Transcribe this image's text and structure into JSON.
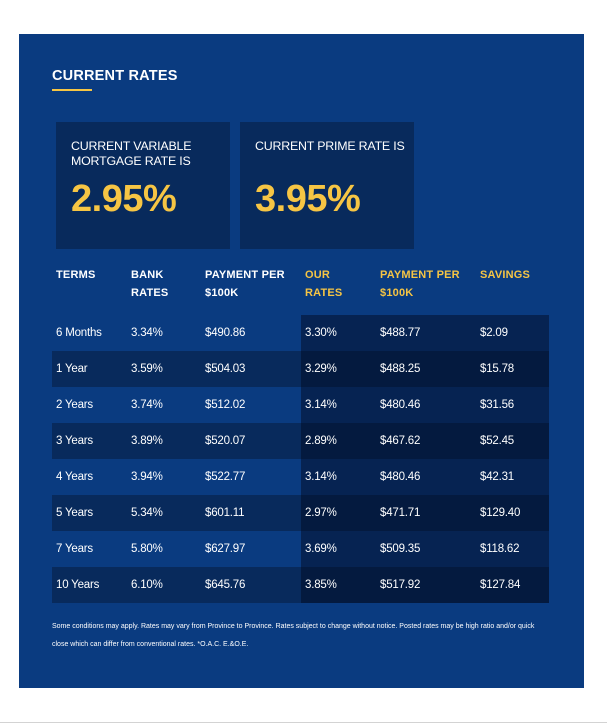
{
  "panel": {
    "title": "CURRENT RATES",
    "accent_color": "#f6c544",
    "background_color": "#0a3b80"
  },
  "cards": [
    {
      "label": "CURRENT VARIABLE MORTGAGE RATE IS",
      "value": "2.95%"
    },
    {
      "label": "CURRENT PRIME RATE IS",
      "value": "3.95%"
    }
  ],
  "table": {
    "headers": [
      "TERMS",
      "BANK RATES",
      "PAYMENT PER $100K",
      "OUR RATES",
      "PAYMENT PER $100K",
      "SAVINGS"
    ],
    "rows": [
      [
        "6 Months",
        "3.34%",
        "$490.86",
        "3.30%",
        "$488.77",
        "$2.09"
      ],
      [
        "1 Year",
        "3.59%",
        "$504.03",
        "3.29%",
        "$488.25",
        "$15.78"
      ],
      [
        "2 Years",
        "3.74%",
        "$512.02",
        "3.14%",
        "$480.46",
        "$31.56"
      ],
      [
        "3 Years",
        "3.89%",
        "$520.07",
        "2.89%",
        "$467.62",
        "$52.45"
      ],
      [
        "4 Years",
        "3.94%",
        "$522.77",
        "3.14%",
        "$480.46",
        "$42.31"
      ],
      [
        "5 Years",
        "5.34%",
        "$601.11",
        "2.97%",
        "$471.71",
        "$129.40"
      ],
      [
        "7 Years",
        "5.80%",
        "$627.97",
        "3.69%",
        "$509.35",
        "$118.62"
      ],
      [
        "10 Years",
        "6.10%",
        "$645.76",
        "3.85%",
        "$517.92",
        "$127.84"
      ]
    ]
  },
  "footnote": "Some conditions may apply. Rates may vary from Province to Province. Rates subject to change without notice. Posted rates may be high ratio and/or quick close which can differ from conventional rates. *O.A.C. E.&O.E."
}
